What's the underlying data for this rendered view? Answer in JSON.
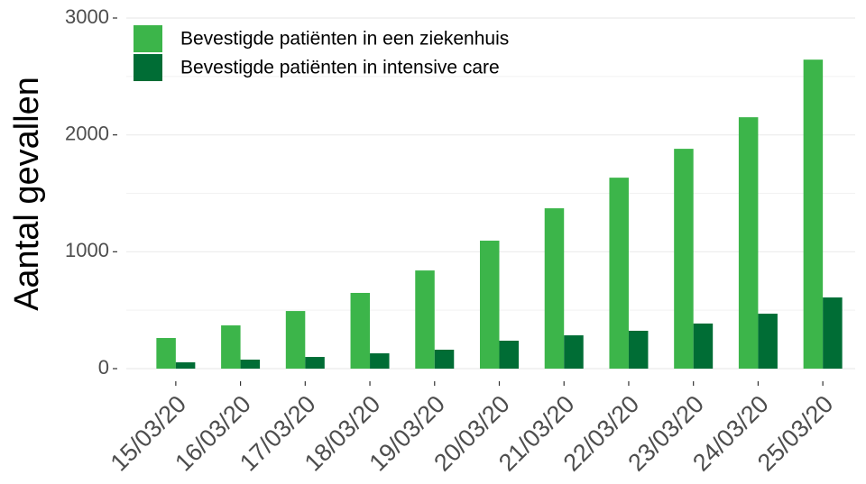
{
  "chart_data": {
    "type": "bar",
    "y_label": "Aantal gevallen",
    "categories": [
      "15/03/20",
      "16/03/20",
      "17/03/20",
      "18/03/20",
      "19/03/20",
      "20/03/20",
      "21/03/20",
      "22/03/20",
      "23/03/20",
      "24/03/20",
      "25/03/20"
    ],
    "series": [
      {
        "name": "Bevestigde patiënten in een ziekenhuis",
        "color": "#3cb54a",
        "values": [
          262,
          370,
          493,
          648,
          840,
          1095,
          1372,
          1634,
          1881,
          2151,
          2644
        ]
      },
      {
        "name": "Bevestigde patiënten in intensive care",
        "color": "#006d35",
        "values": [
          54,
          77,
          100,
          131,
          162,
          239,
          285,
          324,
          386,
          470,
          609
        ]
      }
    ],
    "ylim": [
      0,
      3000
    ],
    "yticks": [
      0,
      1000,
      2000,
      3000
    ],
    "y_minor_ticks": [
      500,
      1500,
      2500
    ],
    "grid": true,
    "legend_position": "top-left"
  }
}
